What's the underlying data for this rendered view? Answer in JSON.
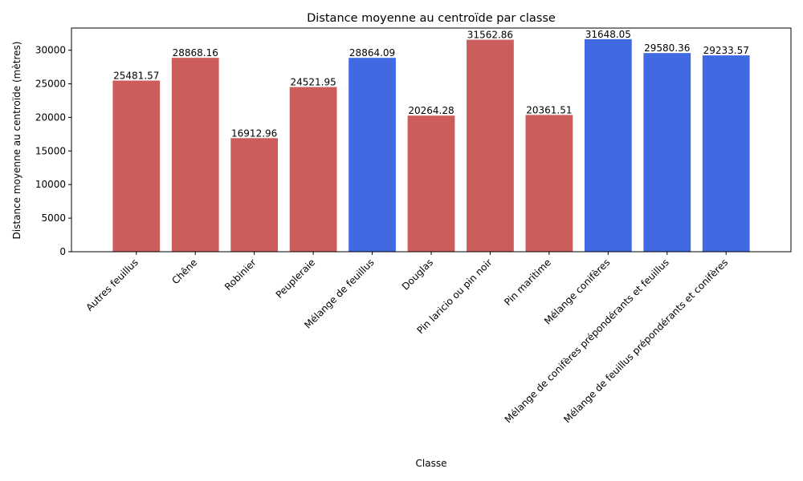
{
  "chart_data": {
    "type": "bar",
    "title": "Distance moyenne au centroïde par classe",
    "xlabel": "Classe",
    "ylabel": "Distance moyenne au centroïde (mètres)",
    "ylim": [
      0,
      33300
    ],
    "yticks": [
      0,
      5000,
      10000,
      15000,
      20000,
      25000,
      30000
    ],
    "grid": false,
    "categories": [
      "Autres feuillus",
      "Chêne",
      "Robinier",
      "Peupleraie",
      "Mélange de feuillus",
      "Douglas",
      "Pin laricio ou pin noir",
      "Pin maritime",
      "Mélange conifères",
      "Mélange de conifères prépondérants et feuillus",
      "Mélange de feuillus prépondérants et conifères"
    ],
    "values": [
      25481.57,
      28868.16,
      16912.96,
      24521.95,
      28864.09,
      20264.28,
      31562.86,
      20361.51,
      31648.05,
      29580.36,
      29233.57
    ],
    "value_labels": [
      "25481.57",
      "28868.16",
      "16912.96",
      "24521.95",
      "28864.09",
      "20264.28",
      "31562.86",
      "20361.51",
      "31648.05",
      "29580.36",
      "29233.57"
    ],
    "bar_colors": [
      "#cd5c5c",
      "#cd5c5c",
      "#cd5c5c",
      "#cd5c5c",
      "#4169e1",
      "#cd5c5c",
      "#cd5c5c",
      "#cd5c5c",
      "#4169e1",
      "#4169e1",
      "#4169e1"
    ]
  }
}
